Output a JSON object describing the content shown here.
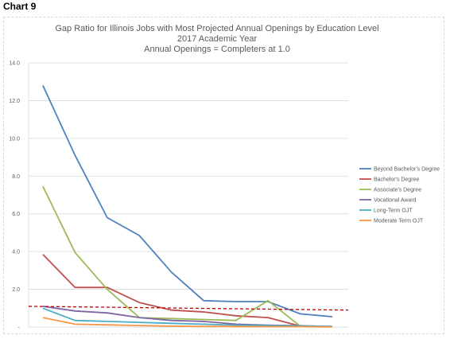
{
  "chart_label": "Chart 9",
  "chart_data": {
    "type": "line",
    "title": [
      "Gap Ratio for Illinois Jobs with Most Projected Annual Openings by Education Level",
      "2017 Academic Year",
      "Annual Openings = Completers at 1.0"
    ],
    "xlabel": "",
    "ylabel": "",
    "ylim": [
      0,
      14
    ],
    "y_ticks": [
      {
        "value": 0,
        "label": "-"
      },
      {
        "value": 2,
        "label": "2.0"
      },
      {
        "value": 4,
        "label": "4.0"
      },
      {
        "value": 6,
        "label": "6.0"
      },
      {
        "value": 8,
        "label": "8.0"
      },
      {
        "value": 10,
        "label": "10.0"
      },
      {
        "value": 12,
        "label": "12.0"
      },
      {
        "value": 14,
        "label": "14.0"
      }
    ],
    "x": [
      1,
      2,
      3,
      4,
      5,
      6,
      7,
      8,
      9,
      10
    ],
    "grid": true,
    "legend_position": "right",
    "series": [
      {
        "name": "Beyond Bachelor's Degree",
        "color": "#4f81bd",
        "values": [
          12.8,
          9.1,
          5.8,
          4.85,
          2.9,
          1.4,
          1.35,
          1.35,
          0.7,
          0.55
        ]
      },
      {
        "name": "Bachelor's Degree",
        "color": "#c0504d",
        "values": [
          3.85,
          2.1,
          2.1,
          1.3,
          0.9,
          0.8,
          0.6,
          0.5,
          0.05,
          0.02
        ]
      },
      {
        "name": "Associate's Degree",
        "color": "#9bbb59",
        "values": [
          7.45,
          3.95,
          2.0,
          0.5,
          0.45,
          0.4,
          0.35,
          1.4,
          0.05,
          0.02
        ]
      },
      {
        "name": "Vocational Award",
        "color": "#8064a2",
        "values": [
          1.1,
          0.85,
          0.75,
          0.5,
          0.35,
          0.3,
          0.15,
          0.1,
          0.07,
          0.03
        ]
      },
      {
        "name": "Long-Term OJT",
        "color": "#4bacc6",
        "values": [
          1.0,
          0.35,
          0.3,
          0.25,
          0.2,
          0.15,
          0.1,
          0.08,
          0.06,
          0.04
        ]
      },
      {
        "name": "Moderate Term OJT",
        "color": "#f79646",
        "values": [
          0.5,
          0.15,
          0.12,
          0.08,
          0.05,
          0.04,
          0.03,
          0.02,
          0.02,
          0.01
        ]
      }
    ],
    "reference_line": {
      "color": "#c00000",
      "values": [
        1.1,
        0.9
      ]
    }
  }
}
